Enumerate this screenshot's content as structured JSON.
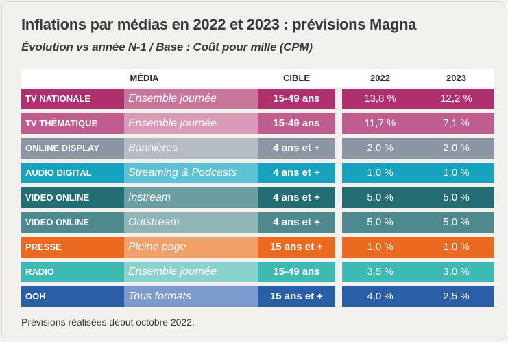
{
  "title": "Inflations par médias en 2022 et 2023 : prévisions Magna",
  "subtitle": "Évolution vs année N-1 / Base : Coût pour mille (CPM)",
  "headers": {
    "media": "MÉDIA",
    "cible": "CIBLE",
    "y2022": "2022",
    "y2023": "2023"
  },
  "rows": [
    {
      "media": "TV NATIONALE",
      "format": "Ensemble journée",
      "cible": "15-49 ans",
      "v2022": "13,8 %",
      "v2023": "12,2 %",
      "color_media": "#b0306e",
      "color_format": "#c8769a",
      "color_vals": "#b0306e"
    },
    {
      "media": "TV THÉMATIQUE",
      "format": "Ensemble journée",
      "cible": "15-49 ans",
      "v2022": "11,7 %",
      "v2023": "7,1 %",
      "color_media": "#bf5d8e",
      "color_format": "#d99ab8",
      "color_vals": "#bf5d8e"
    },
    {
      "media": "ONLINE DISPLAY",
      "format": "Bannières",
      "cible": "4 ans et +",
      "v2022": "2,0 %",
      "v2023": "2,0 %",
      "color_media": "#8a96a3",
      "color_format": "#b4bcc5",
      "color_vals": "#8a96a3"
    },
    {
      "media": "AUDIO DIGITAL",
      "format": "Streaming & Podcasts",
      "cible": "4 ans et +",
      "v2022": "1,0 %",
      "v2023": "1,0 %",
      "color_media": "#17a2bd",
      "color_format": "#5fc2d4",
      "color_vals": "#17a2bd"
    },
    {
      "media": "VIDEO ONLINE",
      "format": "Instream",
      "cible": "4 ans et +",
      "v2022": "5,0 %",
      "v2023": "5,0 %",
      "color_media": "#226e72",
      "color_format": "#6a9ea1",
      "color_vals": "#226e72"
    },
    {
      "media": "VIDEO ONLINE",
      "format": "Outstream",
      "cible": "4 ans et +",
      "v2022": "5,0 %",
      "v2023": "5,0 %",
      "color_media": "#4e8a8d",
      "color_format": "#8fb5b7",
      "color_vals": "#4e8a8d"
    },
    {
      "media": "PRESSE",
      "format": "Pleine page",
      "cible": "15 ans et +",
      "v2022": "1,0 %",
      "v2023": "1,0 %",
      "color_media": "#ec6a1f",
      "color_format": "#f3a068",
      "color_vals": "#ec6a1f"
    },
    {
      "media": "RADIO",
      "format": "Ensemble journée",
      "cible": "15-49 ans",
      "v2022": "3,5 %",
      "v2023": "3,0 %",
      "color_media": "#3dbab2",
      "color_format": "#8ad3cd",
      "color_vals": "#3dbab2"
    },
    {
      "media": "OOH",
      "format": "Tous formats",
      "cible": "15 ans et +",
      "v2022": "4,0 %",
      "v2023": "2,5 %",
      "color_media": "#285fa6",
      "color_format": "#7d9ace",
      "color_vals": "#285fa6"
    }
  ],
  "footnote": "Prévisions réalisées début octobre 2022."
}
